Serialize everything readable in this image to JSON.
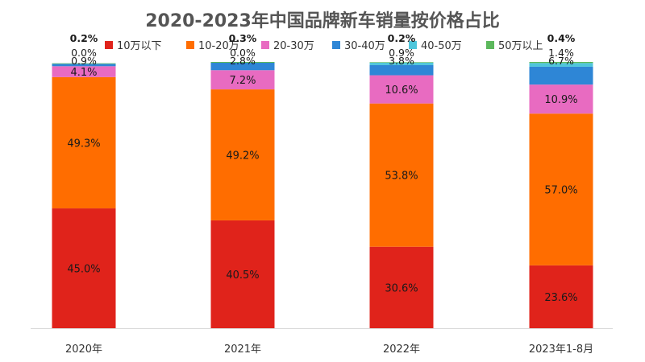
{
  "chart_data": {
    "type": "bar",
    "stacked": true,
    "title": "2020-2023年中国品牌新车销量按价格占比",
    "categories": [
      "2020年",
      "2021年",
      "2022年",
      "2023年1-8月"
    ],
    "ylim": [
      0,
      100
    ],
    "unit": "%",
    "legend_position": "top",
    "grid": false,
    "series": [
      {
        "name": "10万以下",
        "color": "#e0231b",
        "values": [
          45.0,
          40.5,
          30.6,
          23.6
        ],
        "labels": [
          "45.0%",
          "40.5%",
          "30.6%",
          "23.6%"
        ]
      },
      {
        "name": "10-20万",
        "color": "#ff6d00",
        "values": [
          49.3,
          49.2,
          53.8,
          57.0
        ],
        "labels": [
          "49.3%",
          "49.2%",
          "53.8%",
          "57.0%"
        ]
      },
      {
        "name": "20-30万",
        "color": "#e86bc1",
        "values": [
          4.1,
          7.2,
          10.6,
          10.9
        ],
        "labels": [
          "4.1%",
          "7.2%",
          "10.6%",
          "10.9%"
        ]
      },
      {
        "name": "30-40万",
        "color": "#2e86d6",
        "values": [
          0.9,
          2.8,
          3.8,
          6.7
        ],
        "labels": [
          "0.9%",
          "2.8%",
          "3.8%",
          "6.7%"
        ]
      },
      {
        "name": "40-50万",
        "color": "#4fc6dc",
        "values": [
          0.0,
          0.0,
          0.9,
          1.4
        ],
        "labels": [
          "0.0%",
          "0.0%",
          "0.9%",
          "1.4%"
        ]
      },
      {
        "name": "50万以上",
        "color": "#5cb85c",
        "values": [
          0.2,
          0.3,
          0.2,
          0.4
        ],
        "labels": [
          "0.2%",
          "0.3%",
          "0.2%",
          "0.4%"
        ]
      }
    ]
  }
}
